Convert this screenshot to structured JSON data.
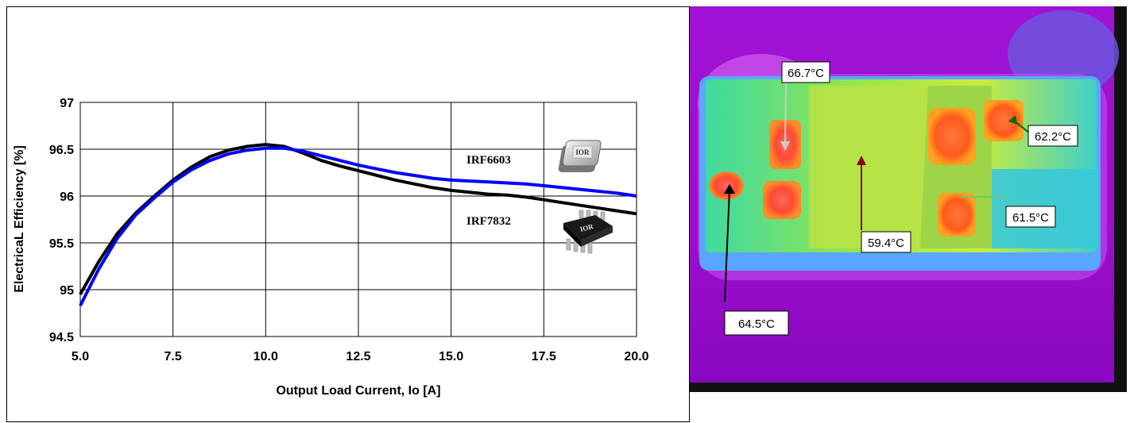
{
  "chart_data": {
    "type": "line",
    "xlabel": "Output Load Current, Io [A]",
    "ylabel": "ElectricaL Efficiency [%]",
    "xlim": [
      5.0,
      20.0
    ],
    "ylim": [
      94.5,
      97
    ],
    "x_ticks": [
      "5.0",
      "7.5",
      "10.0",
      "12.5",
      "15.0",
      "17.5",
      "20.0"
    ],
    "y_ticks": [
      "94.5",
      "95",
      "95.5",
      "96",
      "96.5",
      "97"
    ],
    "grid": true,
    "series": [
      {
        "name": "IRF7832",
        "color": "#000000",
        "x": [
          5.0,
          5.5,
          6.0,
          6.5,
          7.0,
          7.5,
          8.0,
          8.5,
          9.0,
          9.5,
          10.0,
          10.5,
          11.0,
          11.5,
          12.0,
          12.5,
          13.0,
          13.5,
          14.0,
          14.5,
          15.0,
          15.5,
          16.0,
          16.5,
          17.0,
          17.5,
          18.0,
          18.5,
          19.0,
          19.5,
          20.0
        ],
        "y": [
          94.95,
          95.3,
          95.6,
          95.82,
          96.0,
          96.17,
          96.31,
          96.42,
          96.49,
          96.53,
          96.55,
          96.53,
          96.46,
          96.38,
          96.32,
          96.27,
          96.22,
          96.17,
          96.13,
          96.09,
          96.06,
          96.04,
          96.02,
          96.01,
          95.99,
          95.96,
          95.93,
          95.9,
          95.87,
          95.84,
          95.81
        ]
      },
      {
        "name": "IRF6603",
        "color": "#0000ff",
        "x": [
          5.0,
          5.5,
          6.0,
          6.5,
          7.0,
          7.5,
          8.0,
          8.5,
          9.0,
          9.5,
          10.0,
          10.5,
          11.0,
          11.5,
          12.0,
          12.5,
          13.0,
          13.5,
          14.0,
          14.5,
          15.0,
          15.5,
          16.0,
          16.5,
          17.0,
          17.5,
          18.0,
          18.5,
          19.0,
          19.5,
          20.0
        ],
        "y": [
          94.83,
          95.22,
          95.55,
          95.8,
          95.98,
          96.15,
          96.28,
          96.38,
          96.45,
          96.49,
          96.51,
          96.51,
          96.48,
          96.43,
          96.38,
          96.33,
          96.29,
          96.25,
          96.22,
          96.19,
          96.17,
          96.16,
          96.15,
          96.14,
          96.13,
          96.11,
          96.09,
          96.07,
          96.05,
          96.03,
          96.0
        ]
      }
    ]
  },
  "thermal_image": {
    "callouts": [
      {
        "text": "66.7°C",
        "arrow_color": "#cccccc"
      },
      {
        "text": "62.2°C",
        "arrow_color": "#006600"
      },
      {
        "text": "61.5°C",
        "arrow_color": "#66cc66"
      },
      {
        "text": "59.4°C",
        "arrow_color": "#880000"
      },
      {
        "text": "64.5°C",
        "arrow_color": "#000000"
      }
    ]
  }
}
